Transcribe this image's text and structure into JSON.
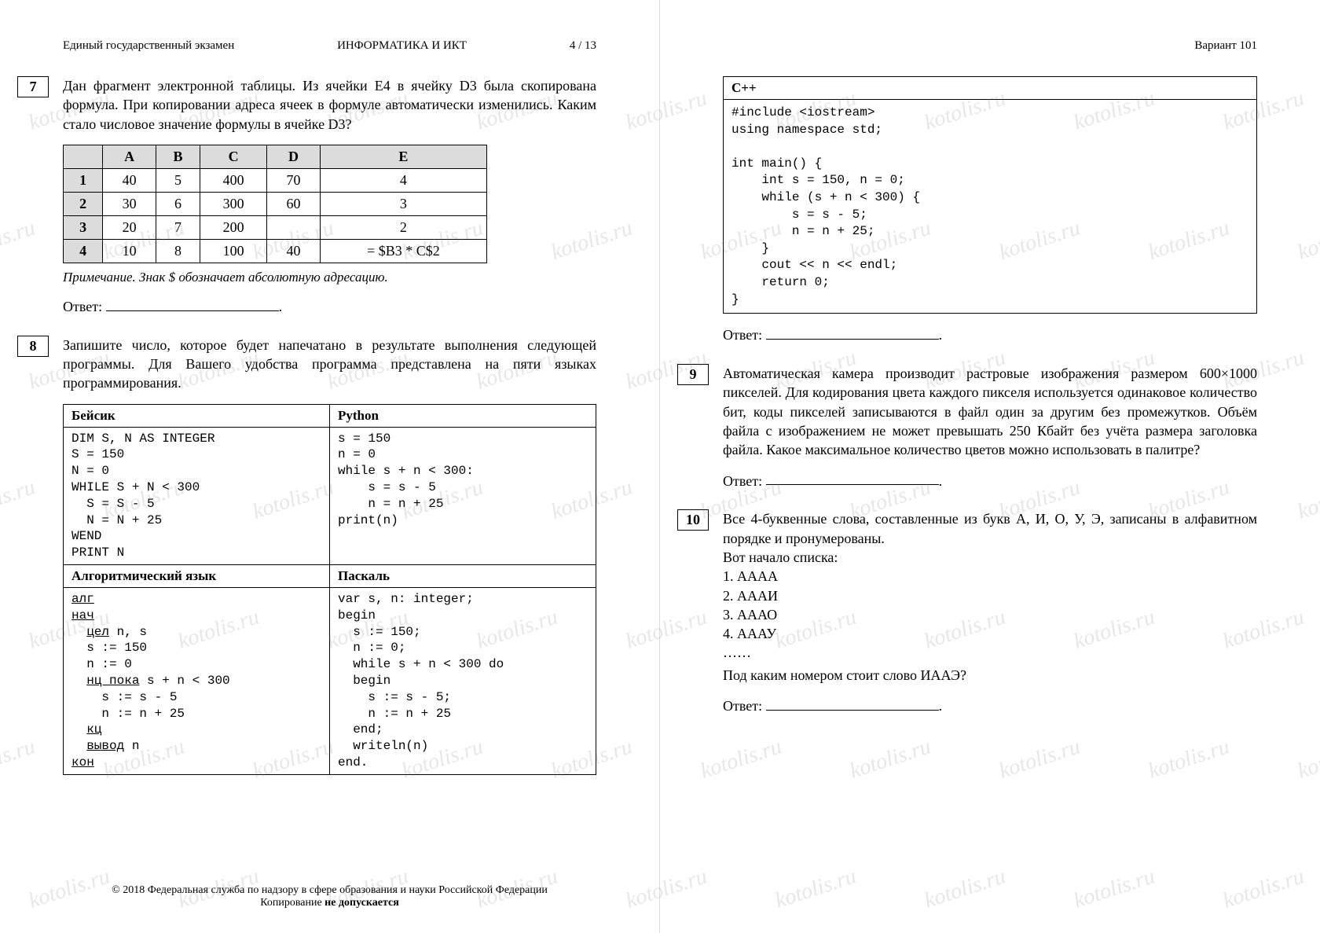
{
  "watermark_text": "kotolis.ru",
  "left": {
    "header": {
      "l": "Единый государственный экзамен",
      "c": "ИНФОРМАТИКА И ИКТ",
      "r": "4 / 13"
    },
    "q7": {
      "num": "7",
      "text": "Дан фрагмент электронной таблицы. Из ячейки E4 в ячейку D3 была скопирована формула. При копировании адреса ячеек в формуле автоматически изменились. Каким стало числовое значение формулы в ячейке D3?",
      "cols": [
        "",
        "A",
        "B",
        "C",
        "D",
        "E"
      ],
      "rows": [
        [
          "1",
          "40",
          "5",
          "400",
          "70",
          "4"
        ],
        [
          "2",
          "30",
          "6",
          "300",
          "60",
          "3"
        ],
        [
          "3",
          "20",
          "7",
          "200",
          "",
          "2"
        ],
        [
          "4",
          "10",
          "8",
          "100",
          "40",
          "= $B3 * C$2"
        ]
      ],
      "note_label": "Примечание",
      "note": ". Знак $ обозначает абсолютную адресацию.",
      "answer_label": "Ответ:"
    },
    "q8": {
      "num": "8",
      "text": "Запишите число, которое будет напечатано в результате выполнения следующей программы. Для Вашего удобства программа представлена на пяти языках программирования.",
      "lang": {
        "basic": "Бейсик",
        "python": "Python",
        "alg": "Алгоритмический язык",
        "pascal": "Паскаль"
      },
      "code": {
        "basic": "DIM S, N AS INTEGER\nS = 150\nN = 0\nWHILE S + N < 300\n  S = S - 5\n  N = N + 25\nWEND\nPRINT N",
        "python": "s = 150\nn = 0\nwhile s + n < 300:\n    s = s - 5\n    n = n + 25\nprint(n)",
        "pascal": "var s, n: integer;\nbegin\n  s := 150;\n  n := 0;\n  while s + n < 300 do\n  begin\n    s := s - 5;\n    n := n + 25\n  end;\n  writeln(n)\nend."
      }
    },
    "footer": {
      "line1": "© 2018 Федеральная служба по надзору в сфере образования и науки Российской Федерации",
      "line2a": "Копирование ",
      "line2b": "не допускается"
    }
  },
  "right": {
    "header": "Вариант 101",
    "cpp": {
      "title": "C++",
      "code": "#include <iostream>\nusing namespace std;\n\nint main() {\n    int s = 150, n = 0;\n    while (s + n < 300) {\n        s = s - 5;\n        n = n + 25;\n    }\n    cout << n << endl;\n    return 0;\n}"
    },
    "answer_label": "Ответ:",
    "q9": {
      "num": "9",
      "text": "Автоматическая камера производит растровые изображения размером 600×1000 пикселей. Для кодирования цвета каждого пикселя используется одинаковое количество бит, коды пикселей записываются в файл один за другим без промежутков. Объём файла с изображением не может превышать 250 Кбайт без учёта размера заголовка файла. Какое максимальное количество цветов можно использовать в палитре?"
    },
    "q10": {
      "num": "10",
      "intro": "Все 4-буквенные слова, составленные из букв А, И, О, У, Э, записаны в алфавитном порядке и пронумерованы.",
      "sub": "Вот начало списка:",
      "items": [
        "1. АААА",
        "2. АААИ",
        "3. АААО",
        "4. АААУ",
        "……"
      ],
      "tail": "Под каким номером стоит слово ИААЭ?"
    }
  }
}
